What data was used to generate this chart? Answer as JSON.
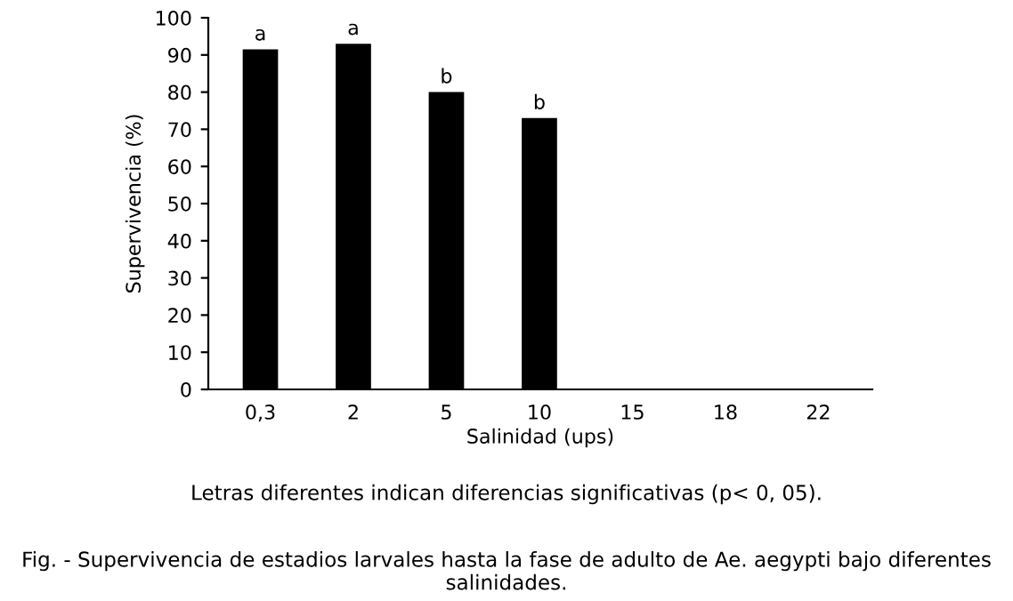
{
  "chart_data": {
    "type": "bar",
    "categories": [
      "0,3",
      "2",
      "5",
      "10",
      "15",
      "18",
      "22"
    ],
    "values": [
      91.5,
      93,
      80,
      73,
      0,
      0,
      0
    ],
    "color": "#000000",
    "xlabel": "Salinidad (ups)",
    "ylabel": "Supervivencia (%)",
    "ylim": [
      0,
      100
    ],
    "yticks": [
      0,
      10,
      20,
      30,
      40,
      50,
      60,
      70,
      80,
      90,
      100
    ],
    "grid": false,
    "legend": false,
    "annotations": [
      {
        "text": "a",
        "x": "0,3",
        "y": 91.5
      },
      {
        "text": "a",
        "x": "2",
        "y": 93
      },
      {
        "text": "b",
        "x": "5",
        "y": 80
      },
      {
        "text": "b",
        "x": "10",
        "y": 73
      },
      "Letras diferentes indican diferencias significativas (p< 0, 05).",
      "Fig. - Supervivencia de estadios larvales hasta la fase de adulto de Ae. aegypti bajo diferentes salinidades."
    ]
  }
}
